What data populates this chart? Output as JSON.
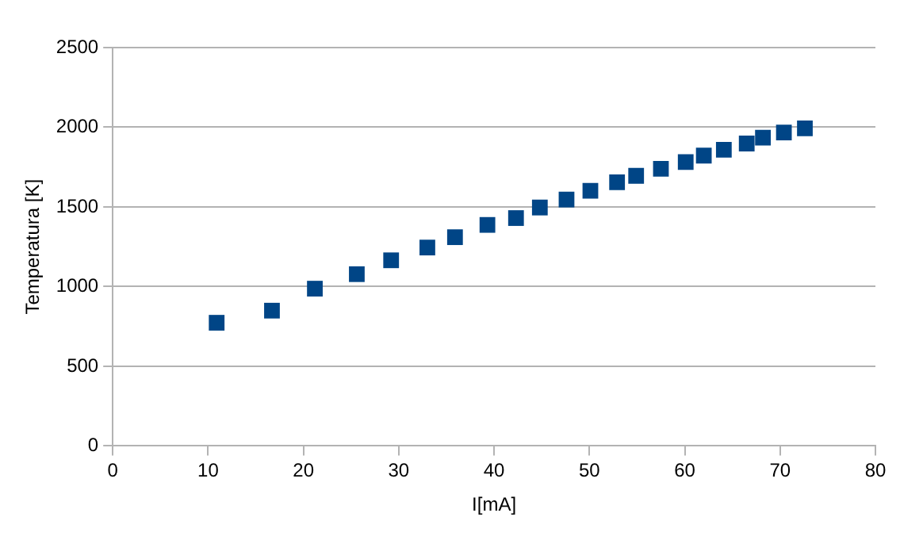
{
  "chart_data": {
    "type": "scatter",
    "xlabel": "I[mA]",
    "ylabel": "Temperatura [K]",
    "x": [
      10.9,
      16.7,
      21.2,
      25.6,
      29.2,
      33.0,
      35.9,
      39.3,
      42.3,
      44.8,
      47.6,
      50.1,
      52.9,
      54.9,
      57.5,
      60.1,
      62.0,
      64.1,
      66.5,
      68.2,
      70.4,
      72.6
    ],
    "series": [
      {
        "color": "#004586",
        "values": [
          773,
          849,
          987,
          1078,
          1165,
          1245,
          1310,
          1387,
          1430,
          1496,
          1546,
          1601,
          1655,
          1695,
          1739,
          1782,
          1822,
          1859,
          1898,
          1935,
          1967,
          1993
        ]
      }
    ],
    "xlim": [
      0,
      80
    ],
    "xticks": [
      0,
      10,
      20,
      30,
      40,
      50,
      60,
      70,
      80
    ],
    "ylim": [
      0,
      2500
    ],
    "yticks": [
      0,
      500,
      1000,
      1500,
      2000,
      2500
    ],
    "grid": "y",
    "legend": false,
    "marker": "square"
  }
}
